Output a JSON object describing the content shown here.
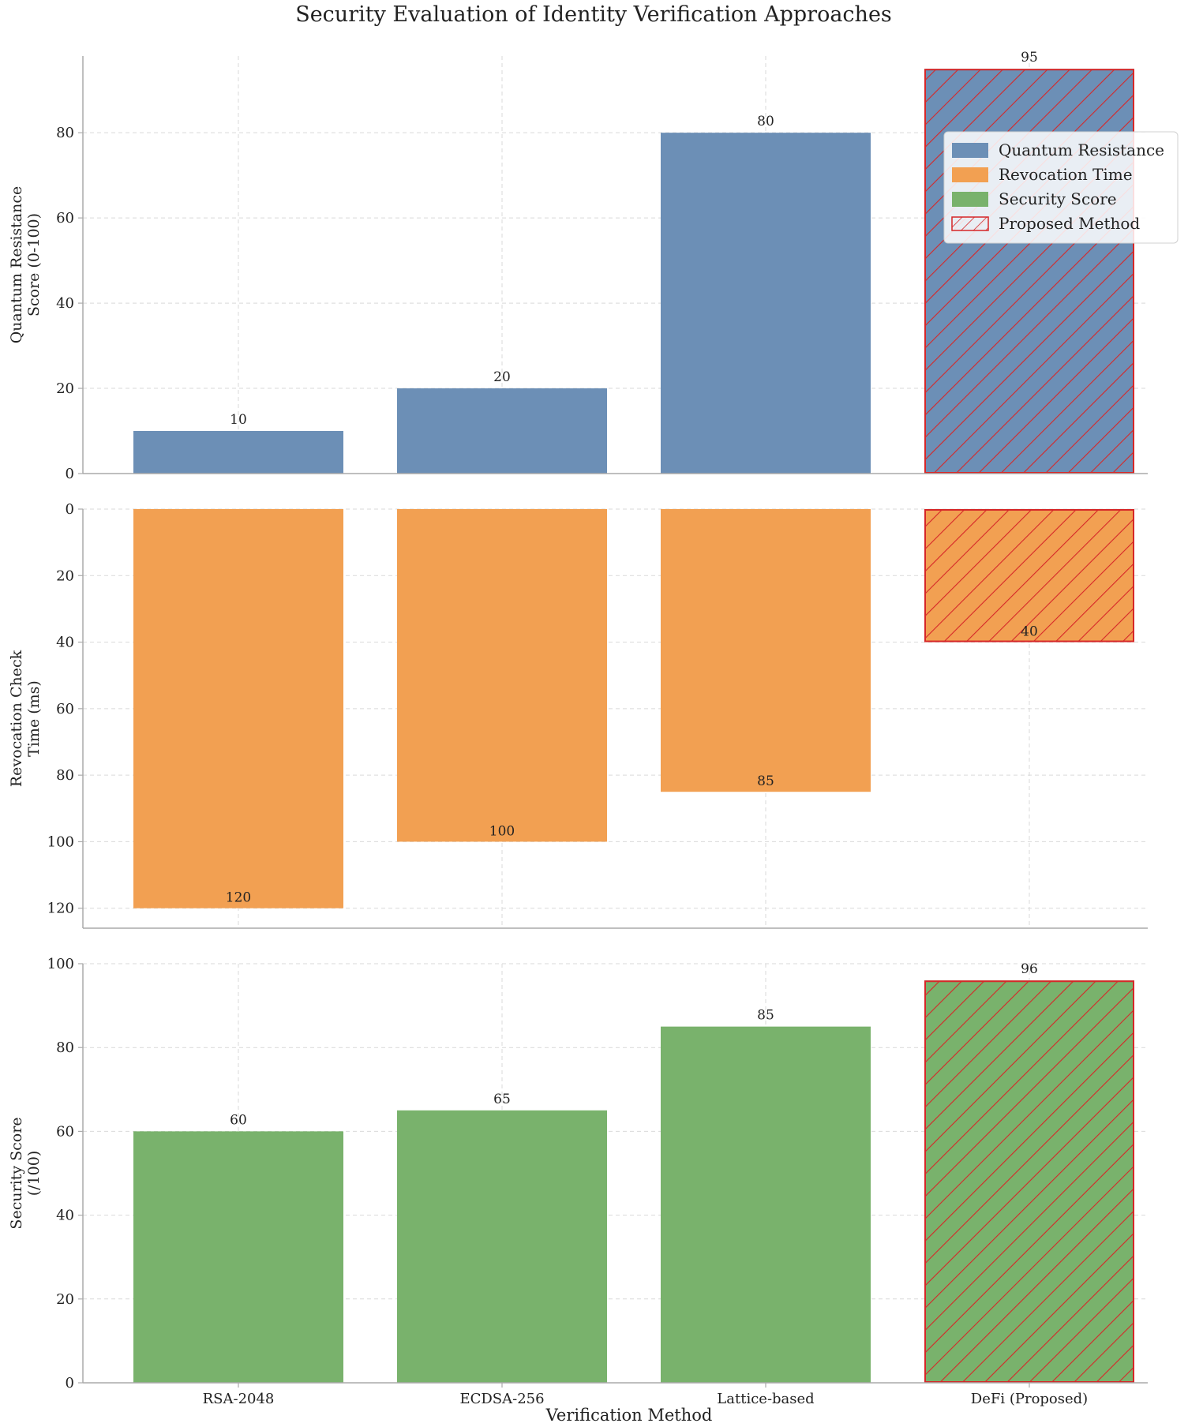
{
  "chart_data": {
    "type": "bar",
    "title": "Security Evaluation of Identity Verification Approaches",
    "xlabel": "Verification Method",
    "categories": [
      "RSA-2048",
      "ECDSA-256",
      "Lattice-based",
      "DeFi (Proposed)"
    ],
    "highlight_category": "DeFi (Proposed)",
    "panels": [
      {
        "name": "Quantum Resistance",
        "ylabel_lines": [
          "Quantum Resistance",
          "Score (0-100)"
        ],
        "values": [
          10,
          20,
          80,
          95
        ],
        "value_labels": [
          "10",
          "20",
          "80",
          "95"
        ],
        "ylim": [
          0,
          98
        ],
        "yticks": [
          0,
          20,
          40,
          60,
          80
        ],
        "ytick_labels": [
          "0",
          "20",
          "40",
          "60",
          "80"
        ],
        "inverted": false,
        "color": "#6c8fb6"
      },
      {
        "name": "Revocation Time",
        "ylabel_lines": [
          "Revocation Check",
          "Time (ms)"
        ],
        "values": [
          120,
          100,
          85,
          40
        ],
        "value_labels": [
          "120",
          "100",
          "85",
          "40"
        ],
        "ylim": [
          0,
          126
        ],
        "yticks": [
          0,
          20,
          40,
          60,
          80,
          100,
          120
        ],
        "ytick_labels": [
          "0",
          "20",
          "40",
          "60",
          "80",
          "100",
          "120"
        ],
        "inverted": true,
        "color": "#f2a052"
      },
      {
        "name": "Security Score",
        "ylabel_lines": [
          "Security Score",
          "(/100)"
        ],
        "values": [
          60,
          65,
          85,
          96
        ],
        "value_labels": [
          "60",
          "65",
          "85",
          "96"
        ],
        "ylim": [
          0,
          100
        ],
        "yticks": [
          0,
          20,
          40,
          60,
          80,
          100
        ],
        "ytick_labels": [
          "0",
          "20",
          "40",
          "60",
          "80",
          "100"
        ],
        "inverted": false,
        "color": "#79b26c"
      }
    ],
    "legend": {
      "location": "right of top panel",
      "entries": [
        {
          "label": "Quantum Resistance",
          "color": "#6c8fb6",
          "style": "solid"
        },
        {
          "label": "Revocation Time",
          "color": "#f2a052",
          "style": "solid"
        },
        {
          "label": "Security Score",
          "color": "#79b26c",
          "style": "solid"
        },
        {
          "label": "Proposed Method",
          "color": "#d62728",
          "style": "hatched"
        }
      ]
    },
    "grid": true
  }
}
